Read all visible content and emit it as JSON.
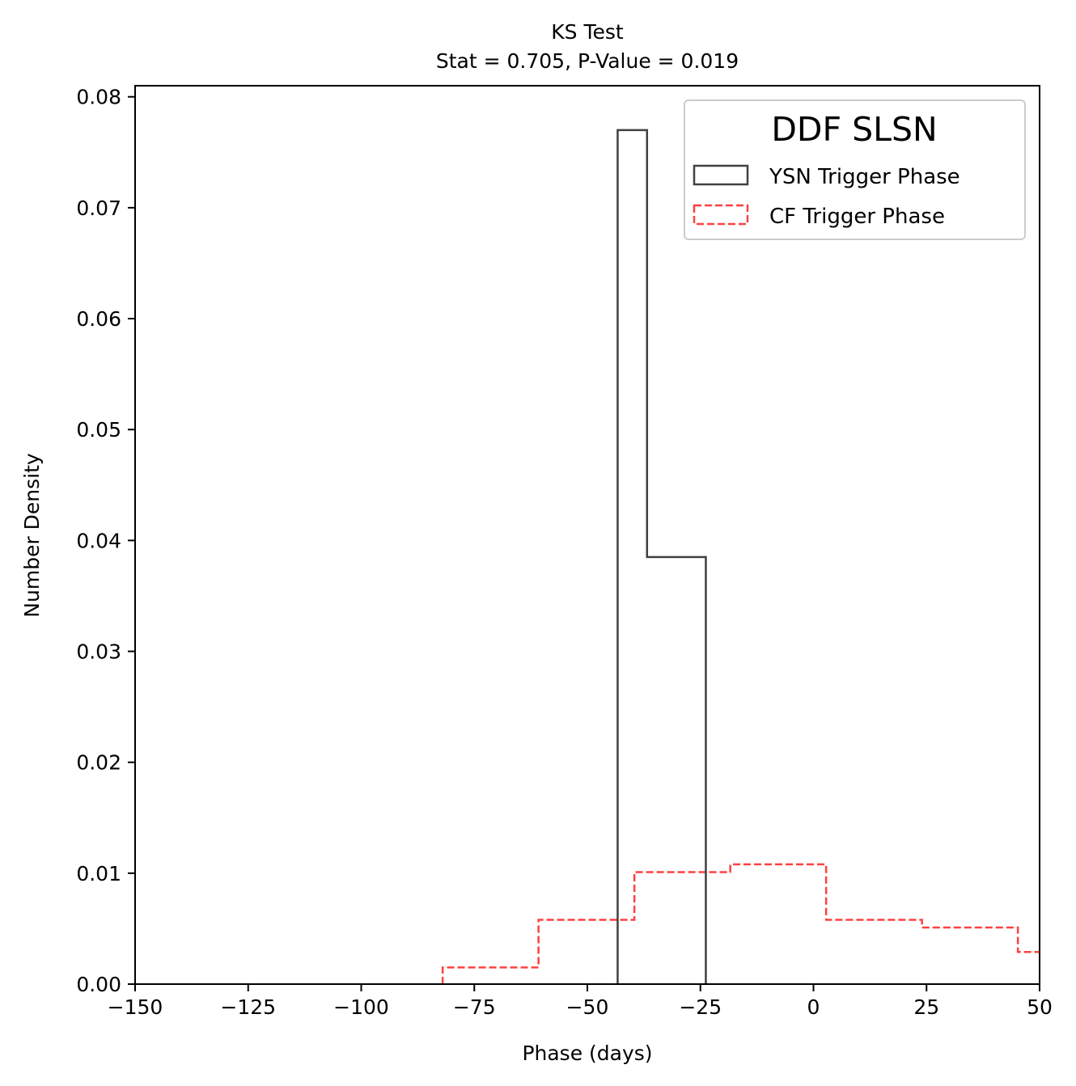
{
  "chart_data": {
    "type": "histogram",
    "title": "KS Test",
    "subtitle": "Stat = 0.705, P-Value = 0.019",
    "xlabel": "Phase (days)",
    "ylabel": "Number Density",
    "xlim": [
      -150,
      50
    ],
    "ylim": [
      0,
      0.081
    ],
    "xticks": [
      -150,
      -125,
      -100,
      -75,
      -50,
      -25,
      0,
      25,
      50
    ],
    "xtick_labels": [
      "−150",
      "−125",
      "−100",
      "−75",
      "−50",
      "−25",
      "0",
      "25",
      "50"
    ],
    "yticks": [
      0,
      0.01,
      0.02,
      0.03,
      0.04,
      0.05,
      0.06,
      0.07,
      0.08
    ],
    "ytick_labels": [
      "0.00",
      "0.01",
      "0.02",
      "0.03",
      "0.04",
      "0.05",
      "0.06",
      "0.07",
      "0.08"
    ],
    "grid": false,
    "legend": {
      "title": "DDF SLSN",
      "placement": "upper right"
    },
    "series": [
      {
        "name": "YSN Trigger Phase",
        "style": "solid",
        "color": "#404040",
        "bin_edges": [
          -43.3,
          -36.8,
          -23.8
        ],
        "values": [
          0.077,
          0.0385
        ]
      },
      {
        "name": "CF Trigger Phase",
        "style": "dashed",
        "color": "#ff4040",
        "bin_edges": [
          -82.0,
          -60.8,
          -39.6,
          -18.4,
          2.8,
          24.0,
          45.2,
          66.4
        ],
        "values": [
          0.0015,
          0.0058,
          0.0101,
          0.0108,
          0.0058,
          0.0051,
          0.0029
        ]
      }
    ]
  }
}
